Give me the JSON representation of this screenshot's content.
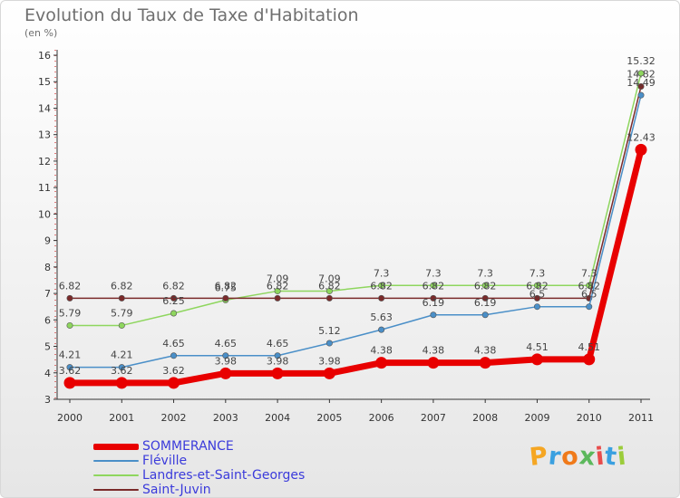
{
  "title": "Evolution du Taux de Taxe d'Habitation",
  "unit": "(en %)",
  "logo": {
    "letters": [
      "P",
      "r",
      "o",
      "x",
      "i",
      "t",
      "i"
    ],
    "colors": [
      "#f5a623",
      "#3aa0e0",
      "#f07a1a",
      "#5cb85c",
      "#e84c4c",
      "#3aa0e0",
      "#9bcc3a"
    ]
  },
  "chart_data": {
    "type": "line",
    "title": "Evolution du Taux de Taxe d'Habitation",
    "ylabel": "(en %)",
    "xlabel": "",
    "x": [
      "2000",
      "2001",
      "2002",
      "2003",
      "2004",
      "2005",
      "2006",
      "2007",
      "2008",
      "2009",
      "2010",
      "2011"
    ],
    "yticks": [
      "3",
      "4",
      "5",
      "6",
      "7",
      "8",
      "9",
      "10",
      "11",
      "12",
      "13",
      "14",
      "15",
      "16"
    ],
    "ylim": [
      3,
      16
    ],
    "grid": false,
    "legend": "bottom-left",
    "series": [
      {
        "name": "SOMMERANCE",
        "color": "#e80000",
        "values": [
          3.62,
          3.62,
          3.62,
          3.98,
          3.98,
          3.98,
          4.38,
          4.38,
          4.38,
          4.51,
          4.51,
          12.43
        ],
        "labels": [
          "3.62",
          "3.62",
          "3.62",
          "3.98",
          "3.98",
          "3.98",
          "4.38",
          "4.38",
          "4.38",
          "4.51",
          "4.51",
          "12.43"
        ]
      },
      {
        "name": "Fléville",
        "color": "#4a8fc8",
        "values": [
          4.21,
          4.21,
          4.65,
          4.65,
          4.65,
          5.12,
          5.63,
          6.19,
          6.19,
          6.5,
          6.5,
          14.49
        ],
        "labels": [
          "4.21",
          "4.21",
          "4.65",
          "4.65",
          "4.65",
          "5.12",
          "5.63",
          "6.19",
          "6.19",
          "6.5",
          "6.5",
          "14.49"
        ]
      },
      {
        "name": "Landres-et-Saint-Georges",
        "color": "#8ed65e",
        "values": [
          5.79,
          5.79,
          6.25,
          6.75,
          7.09,
          7.09,
          7.3,
          7.3,
          7.3,
          7.3,
          7.3,
          15.32
        ],
        "labels": [
          "5.79",
          "5.79",
          "6.25",
          "6.75",
          "7.09",
          "7.09",
          "7.3",
          "7.3",
          "7.3",
          "7.3",
          "7.3",
          "15.32"
        ]
      },
      {
        "name": "Saint-Juvin",
        "color": "#7a2a2a",
        "values": [
          6.82,
          6.82,
          6.82,
          6.82,
          6.82,
          6.82,
          6.82,
          6.82,
          6.82,
          6.82,
          6.82,
          14.82
        ],
        "labels": [
          "6.82",
          "6.82",
          "6.82",
          "6.82",
          "6.82",
          "6.82",
          "6.82",
          "6.82",
          "6.82",
          "6.82",
          "6.82",
          "14.82"
        ]
      }
    ]
  }
}
